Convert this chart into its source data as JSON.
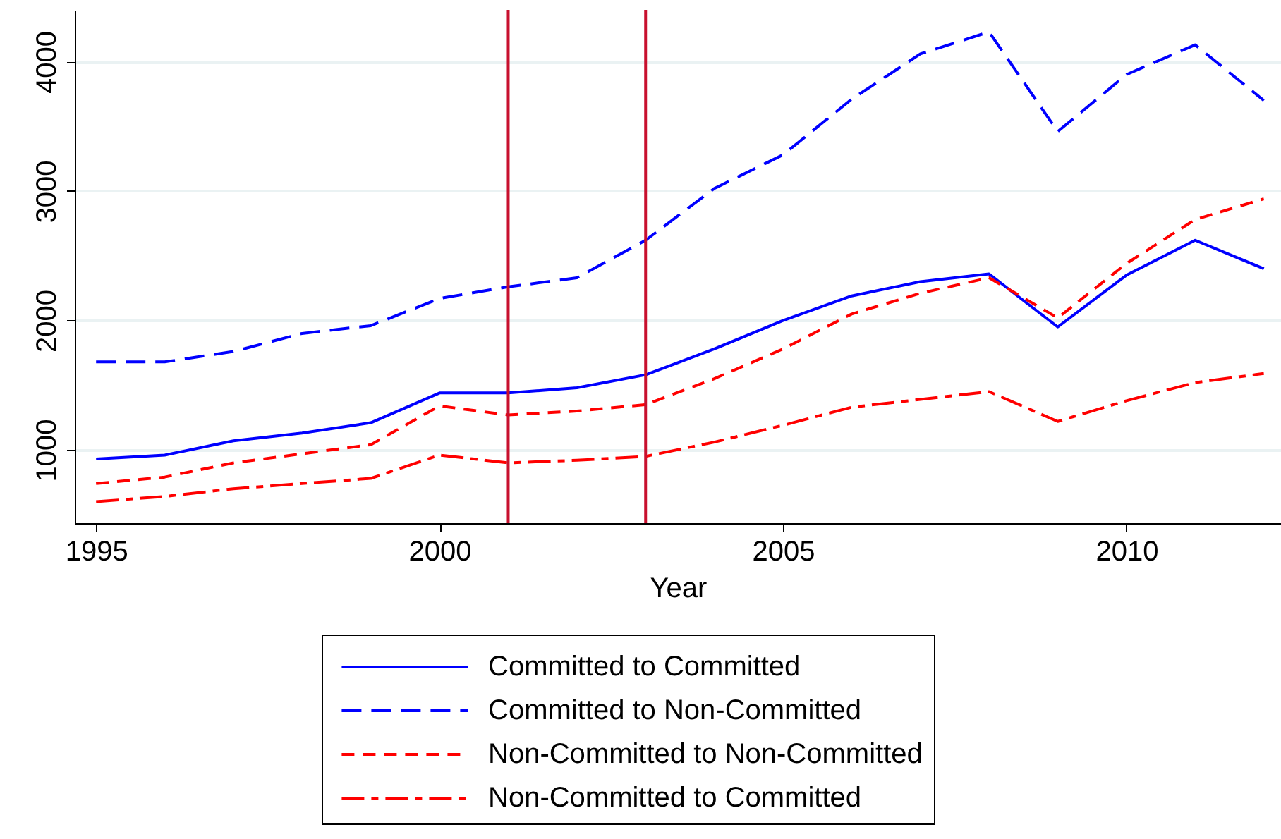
{
  "chart_data": {
    "type": "line",
    "xlabel": "Year",
    "x": [
      1995,
      1996,
      1997,
      1998,
      1999,
      2000,
      2001,
      2002,
      2003,
      2004,
      2005,
      2006,
      2007,
      2008,
      2009,
      2010,
      2011,
      2012
    ],
    "series": [
      {
        "name": "Committed to Committed",
        "color": "#0000ff",
        "line_style": "solid",
        "values": [
          930,
          960,
          1070,
          1130,
          1210,
          1440,
          1440,
          1480,
          1580,
          1780,
          2000,
          2190,
          2300,
          2360,
          1950,
          2350,
          2620,
          2400
        ]
      },
      {
        "name": "Committed to Non-Committed",
        "color": "#0000ff",
        "line_style": "dashed",
        "values": [
          1680,
          1680,
          1760,
          1900,
          1960,
          2170,
          2260,
          2330,
          2620,
          3020,
          3280,
          3710,
          4060,
          4230,
          3460,
          3900,
          4130,
          3700
        ]
      },
      {
        "name": "Non-Committed to Non-Committed",
        "color": "#ff0000",
        "line_style": "dashed",
        "values": [
          740,
          790,
          900,
          970,
          1040,
          1340,
          1270,
          1300,
          1350,
          1550,
          1780,
          2050,
          2210,
          2330,
          2020,
          2440,
          2780,
          2940
        ]
      },
      {
        "name": "Non-Committed to Committed",
        "color": "#ff0000",
        "line_style": "dashed",
        "values": [
          600,
          640,
          700,
          740,
          780,
          960,
          900,
          920,
          950,
          1060,
          1190,
          1330,
          1390,
          1450,
          1220,
          1380,
          1520,
          1590
        ]
      }
    ],
    "xlim": [
      1994.69,
      2012.25
    ],
    "xticks": [
      1995,
      2000,
      2005,
      2010
    ],
    "ylim": [
      434,
      4400
    ],
    "yticks": [
      1000,
      2000,
      3000,
      4000
    ],
    "ref_lines": [
      {
        "axis": "x",
        "value": 2001,
        "color": "#c8102e"
      },
      {
        "axis": "x",
        "value": 2003,
        "color": "#c8102e"
      }
    ],
    "grid": "y",
    "legend": "bottom",
    "marker": "none"
  }
}
